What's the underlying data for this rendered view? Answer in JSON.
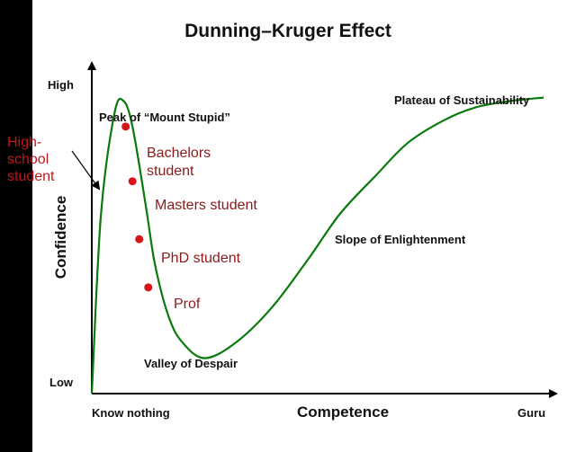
{
  "chart_data": {
    "type": "line",
    "title": "Dunning–Kruger Effect",
    "xlabel": "Competence",
    "ylabel": "Confidence",
    "x_tick_labels": {
      "start": "Know nothing",
      "end": "Guru"
    },
    "y_tick_labels": {
      "low": "Low",
      "high": "High"
    },
    "xlim": [
      0,
      100
    ],
    "ylim": [
      0,
      100
    ],
    "grid": false,
    "curve": {
      "x": [
        0,
        2,
        5,
        7,
        9,
        12,
        14,
        17,
        20,
        25,
        32,
        40,
        48,
        55,
        63,
        70,
        78,
        85,
        93,
        100
      ],
      "y": [
        0,
        55,
        87,
        91,
        83,
        58,
        40,
        24,
        16,
        11,
        16,
        27,
        42,
        56,
        68,
        78,
        85,
        89,
        91,
        92
      ]
    },
    "regions": [
      {
        "label": "Peak of “Mount Stupid”"
      },
      {
        "label": "Valley of Despair"
      },
      {
        "label": "Slope of Enlightenment"
      },
      {
        "label": "Plateau of Sustainability"
      }
    ],
    "points": [
      {
        "label": "Bachelors student",
        "x": 7.5,
        "y": 83,
        "color": "#d7141a"
      },
      {
        "label": "Masters student",
        "x": 9,
        "y": 66,
        "color": "#d7141a"
      },
      {
        "label": "PhD student",
        "x": 10.5,
        "y": 48,
        "color": "#d7141a"
      },
      {
        "label": "Prof",
        "x": 12.5,
        "y": 33,
        "color": "#d7141a"
      }
    ],
    "annotation": {
      "label": "High-school student"
    },
    "colors": {
      "curve": "#0a7a0a",
      "points": "#d7141a",
      "axes": "#000000"
    }
  }
}
